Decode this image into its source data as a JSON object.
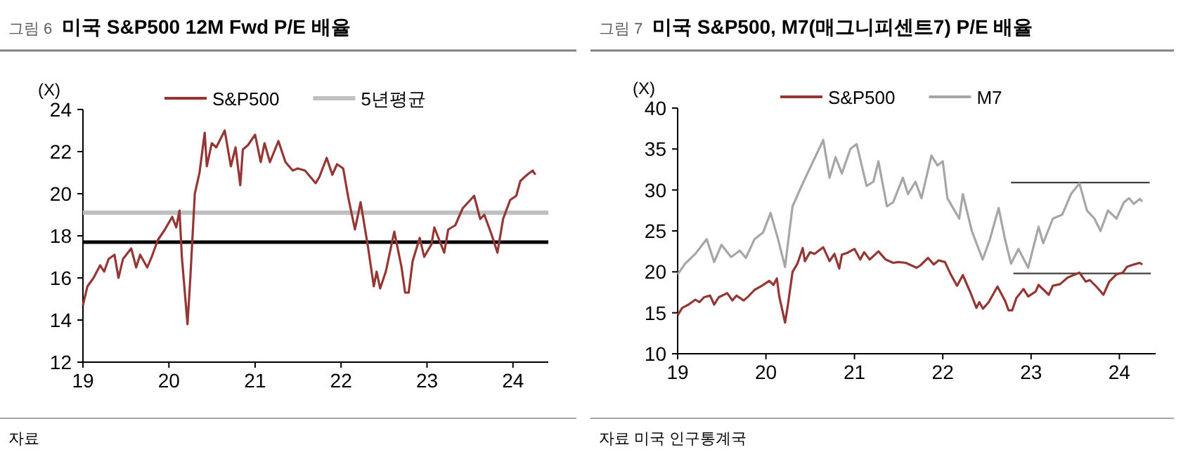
{
  "chart_data": [
    {
      "type": "line",
      "title": "미국 S&P500 12M Fwd P/E 배율",
      "ylabel": "(X)",
      "annotations": [
        "그림 6",
        "자료"
      ],
      "legend": "top",
      "grid": false,
      "xlim": [
        "2019-01-01",
        "2024-05-30"
      ],
      "xticks": [
        {
          "value": "2019-01-01",
          "label": "19"
        },
        {
          "value": "2020-01-01",
          "label": "20"
        },
        {
          "value": "2021-01-01",
          "label": "21"
        },
        {
          "value": "2022-01-01",
          "label": "22"
        },
        {
          "value": "2023-01-01",
          "label": "23"
        },
        {
          "value": "2024-01-01",
          "label": "24"
        }
      ],
      "ylim": [
        12,
        24
      ],
      "yticks": [
        12,
        14,
        16,
        18,
        20,
        22,
        24
      ],
      "ref_lines": [
        {
          "axis": "y",
          "value": 17.7,
          "label": null,
          "color": "#000000"
        }
      ],
      "series": [
        {
          "name": "S&P500",
          "color": "#943634",
          "x": [
            "2019-01-01",
            "2019-01-20",
            "2019-02-15",
            "2019-03-15",
            "2019-04-01",
            "2019-04-20",
            "2019-05-15",
            "2019-06-01",
            "2019-06-20",
            "2019-07-25",
            "2019-08-15",
            "2019-09-01",
            "2019-10-01",
            "2019-10-20",
            "2019-11-15",
            "2019-12-15",
            "2020-01-15",
            "2020-02-01",
            "2020-02-15",
            "2020-02-25",
            "2020-03-20",
            "2020-04-01",
            "2020-04-20",
            "2020-05-10",
            "2020-06-01",
            "2020-06-10",
            "2020-07-01",
            "2020-07-20",
            "2020-08-25",
            "2020-09-20",
            "2020-10-10",
            "2020-10-30",
            "2020-11-10",
            "2020-12-01",
            "2021-01-01",
            "2021-01-25",
            "2021-02-10",
            "2021-03-05",
            "2021-04-10",
            "2021-05-10",
            "2021-06-10",
            "2021-07-01",
            "2021-08-01",
            "2021-09-15",
            "2021-10-01",
            "2021-11-01",
            "2021-11-25",
            "2021-12-15",
            "2022-01-10",
            "2022-02-01",
            "2022-03-01",
            "2022-03-25",
            "2022-04-25",
            "2022-05-20",
            "2022-06-01",
            "2022-06-16",
            "2022-07-10",
            "2022-08-15",
            "2022-09-15",
            "2022-09-30",
            "2022-10-15",
            "2022-11-01",
            "2022-12-01",
            "2022-12-20",
            "2023-01-20",
            "2023-02-01",
            "2023-03-15",
            "2023-04-01",
            "2023-05-01",
            "2023-06-01",
            "2023-07-20",
            "2023-08-15",
            "2023-09-01",
            "2023-10-01",
            "2023-10-27",
            "2023-11-20",
            "2023-12-20",
            "2024-01-15",
            "2024-02-01",
            "2024-03-01",
            "2024-03-25",
            "2024-04-05"
          ],
          "values": [
            14.7,
            15.6,
            16.0,
            16.6,
            16.3,
            16.9,
            17.1,
            16.0,
            16.9,
            17.4,
            16.5,
            17.1,
            16.5,
            17.0,
            17.8,
            18.3,
            18.9,
            18.4,
            19.2,
            17.0,
            13.8,
            16.0,
            20.0,
            21.0,
            22.9,
            21.3,
            22.4,
            22.2,
            23.0,
            21.3,
            22.2,
            20.4,
            22.1,
            22.3,
            22.8,
            21.5,
            22.4,
            21.5,
            22.5,
            21.5,
            21.1,
            21.2,
            21.1,
            20.5,
            20.8,
            21.7,
            20.9,
            21.4,
            21.2,
            19.8,
            18.3,
            19.6,
            17.5,
            15.6,
            16.3,
            15.5,
            16.3,
            18.2,
            16.5,
            15.3,
            15.3,
            16.8,
            17.9,
            17.0,
            17.6,
            18.4,
            17.2,
            18.3,
            18.5,
            19.3,
            19.9,
            18.8,
            19.0,
            18.1,
            17.2,
            18.8,
            19.7,
            19.9,
            20.6,
            20.9,
            21.1,
            20.9
          ]
        },
        {
          "name": "5년평균",
          "color": "#bfbfbf",
          "x": [
            "2019-01-01",
            "2024-05-30"
          ],
          "values": [
            19.1,
            19.1
          ]
        }
      ]
    },
    {
      "type": "line",
      "title": "미국 S&P500, M7(매그니피센트7) P/E 배율",
      "ylabel": "(X)",
      "annotations": [
        "그림 7",
        "자료 미국 인구통계국"
      ],
      "legend": "top",
      "grid": false,
      "xlim": [
        "2019-01-01",
        "2024-05-30"
      ],
      "xticks": [
        {
          "value": "2019-01-01",
          "label": "19"
        },
        {
          "value": "2020-01-01",
          "label": "20"
        },
        {
          "value": "2021-01-01",
          "label": "21"
        },
        {
          "value": "2022-01-01",
          "label": "22"
        },
        {
          "value": "2023-01-01",
          "label": "23"
        },
        {
          "value": "2024-01-01",
          "label": "24"
        }
      ],
      "ylim": [
        10,
        40
      ],
      "yticks": [
        10,
        15,
        20,
        25,
        30,
        35,
        40
      ],
      "series": [
        {
          "name": "S&P500",
          "color": "#943634",
          "x": [
            "2019-01-01",
            "2019-01-20",
            "2019-02-15",
            "2019-03-15",
            "2019-04-01",
            "2019-04-20",
            "2019-05-15",
            "2019-06-01",
            "2019-06-20",
            "2019-07-25",
            "2019-08-15",
            "2019-09-01",
            "2019-10-01",
            "2019-10-20",
            "2019-11-15",
            "2019-12-15",
            "2020-01-15",
            "2020-02-01",
            "2020-02-15",
            "2020-02-25",
            "2020-03-20",
            "2020-04-01",
            "2020-04-20",
            "2020-05-10",
            "2020-06-01",
            "2020-06-10",
            "2020-07-01",
            "2020-07-20",
            "2020-08-25",
            "2020-09-20",
            "2020-10-10",
            "2020-10-30",
            "2020-11-10",
            "2020-12-01",
            "2021-01-01",
            "2021-01-25",
            "2021-02-10",
            "2021-03-05",
            "2021-04-10",
            "2021-05-10",
            "2021-06-10",
            "2021-07-01",
            "2021-08-01",
            "2021-09-15",
            "2021-10-01",
            "2021-11-01",
            "2021-11-25",
            "2021-12-15",
            "2022-01-10",
            "2022-02-01",
            "2022-03-01",
            "2022-03-25",
            "2022-04-25",
            "2022-05-20",
            "2022-06-01",
            "2022-06-16",
            "2022-07-10",
            "2022-08-15",
            "2022-09-15",
            "2022-09-30",
            "2022-10-15",
            "2022-11-01",
            "2022-12-01",
            "2022-12-20",
            "2023-01-20",
            "2023-02-01",
            "2023-03-15",
            "2023-04-01",
            "2023-05-01",
            "2023-06-01",
            "2023-07-20",
            "2023-08-15",
            "2023-09-01",
            "2023-10-01",
            "2023-10-27",
            "2023-11-20",
            "2023-12-20",
            "2024-01-15",
            "2024-02-01",
            "2024-03-01",
            "2024-03-25",
            "2024-04-05"
          ],
          "values": [
            14.7,
            15.6,
            16.0,
            16.6,
            16.3,
            16.9,
            17.1,
            16.0,
            16.9,
            17.4,
            16.5,
            17.1,
            16.5,
            17.0,
            17.8,
            18.3,
            18.9,
            18.4,
            19.2,
            17.0,
            13.8,
            16.0,
            20.0,
            21.0,
            22.9,
            21.3,
            22.4,
            22.2,
            23.0,
            21.3,
            22.2,
            20.4,
            22.1,
            22.3,
            22.8,
            21.5,
            22.4,
            21.5,
            22.5,
            21.5,
            21.1,
            21.2,
            21.1,
            20.5,
            20.8,
            21.7,
            20.9,
            21.4,
            21.2,
            19.8,
            18.3,
            19.6,
            17.5,
            15.6,
            16.3,
            15.5,
            16.3,
            18.2,
            16.5,
            15.3,
            15.3,
            16.8,
            17.9,
            17.0,
            17.6,
            18.4,
            17.2,
            18.3,
            18.5,
            19.3,
            19.9,
            18.8,
            19.0,
            18.1,
            17.2,
            18.8,
            19.7,
            19.9,
            20.6,
            20.9,
            21.1,
            20.9
          ]
        },
        {
          "name": "M7",
          "color": "#a6a6a6",
          "x": [
            "2019-01-01",
            "2019-02-01",
            "2019-03-15",
            "2019-05-01",
            "2019-06-01",
            "2019-07-01",
            "2019-08-10",
            "2019-09-15",
            "2019-10-10",
            "2019-11-15",
            "2019-12-20",
            "2020-01-20",
            "2020-02-20",
            "2020-03-20",
            "2020-04-01",
            "2020-04-20",
            "2020-05-20",
            "2020-06-20",
            "2020-08-25",
            "2020-09-20",
            "2020-10-15",
            "2020-11-10",
            "2020-12-15",
            "2021-01-10",
            "2021-02-20",
            "2021-03-20",
            "2021-04-10",
            "2021-05-15",
            "2021-06-10",
            "2021-07-20",
            "2021-08-10",
            "2021-09-10",
            "2021-10-05",
            "2021-11-15",
            "2021-12-10",
            "2022-01-01",
            "2022-01-20",
            "2022-03-10",
            "2022-03-25",
            "2022-05-01",
            "2022-06-15",
            "2022-07-15",
            "2022-08-20",
            "2022-09-15",
            "2022-10-10",
            "2022-11-10",
            "2022-12-20",
            "2023-02-01",
            "2023-02-20",
            "2023-04-01",
            "2023-05-10",
            "2023-06-15",
            "2023-07-20",
            "2023-08-20",
            "2023-09-20",
            "2023-10-15",
            "2023-11-15",
            "2023-12-20",
            "2024-01-20",
            "2024-02-10",
            "2024-03-01",
            "2024-03-25",
            "2024-04-05"
          ],
          "values": [
            19.7,
            21.0,
            22.2,
            24.0,
            21.2,
            23.3,
            21.8,
            22.6,
            21.7,
            24.0,
            24.8,
            27.2,
            24.0,
            20.6,
            23.5,
            28.0,
            30.0,
            32.0,
            36.1,
            31.5,
            34.0,
            32.0,
            35.0,
            35.6,
            30.5,
            31.0,
            33.5,
            28.0,
            28.5,
            31.5,
            29.5,
            31.0,
            29.0,
            34.2,
            33.0,
            33.5,
            29.0,
            26.5,
            29.5,
            25.0,
            21.5,
            24.0,
            27.8,
            24.0,
            21.0,
            22.8,
            20.5,
            25.5,
            23.5,
            26.5,
            27.0,
            29.5,
            30.8,
            27.5,
            26.5,
            25.0,
            27.5,
            26.5,
            28.5,
            29.0,
            28.3,
            28.9,
            28.6
          ]
        },
        {
          "color": "#404040",
          "x": [
            "2022-10-10",
            "2024-05-05"
          ],
          "values": [
            30.9,
            30.9
          ]
        },
        {
          "color": "#404040",
          "x": [
            "2022-10-20",
            "2024-05-10"
          ],
          "values": [
            19.8,
            19.8
          ]
        }
      ]
    }
  ]
}
